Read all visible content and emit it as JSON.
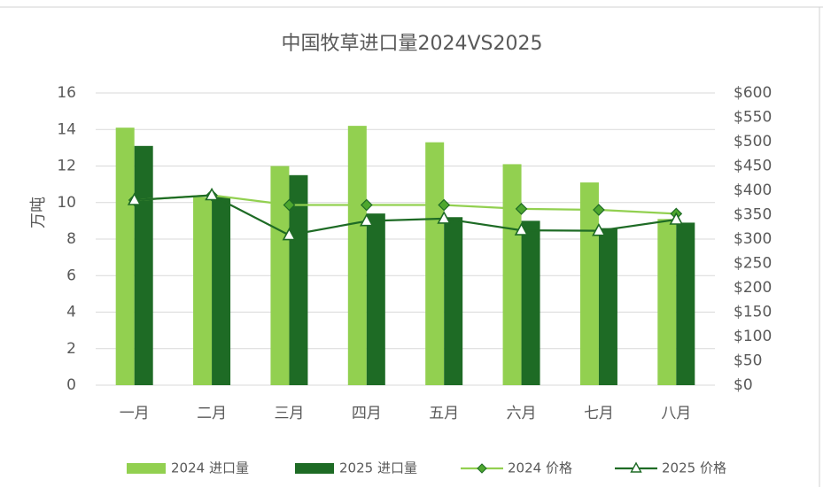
{
  "chart_data": {
    "type": "combo",
    "title": "中国牧草进口量2024VS2025",
    "y_label": "万吨",
    "categories": [
      "一月",
      "二月",
      "三月",
      "四月",
      "五月",
      "六月",
      "七月",
      "八月"
    ],
    "series": [
      {
        "name": "2024 进口量",
        "type": "bar",
        "color": "#92d050",
        "values": [
          14.1,
          10.3,
          12.0,
          14.2,
          13.3,
          12.1,
          11.1,
          9.1
        ]
      },
      {
        "name": "2025 进口量",
        "type": "bar",
        "color": "#1e6b25",
        "values": [
          13.1,
          10.3,
          11.5,
          9.4,
          9.2,
          9.0,
          8.6,
          8.9
        ]
      },
      {
        "name": "2024 价格",
        "type": "line",
        "marker": "diamond",
        "color": "#92d050",
        "axis": "y2",
        "values": [
          380,
          390,
          370,
          370,
          370,
          362,
          360,
          352
        ]
      },
      {
        "name": "2025 价格",
        "type": "line",
        "marker": "triangle",
        "color": "#1e6b25",
        "axis": "y2",
        "values": [
          380,
          390,
          308,
          337,
          342,
          318,
          317,
          340
        ]
      }
    ],
    "ylim": [
      0,
      16
    ],
    "yticks": [
      0,
      2,
      4,
      6,
      8,
      10,
      12,
      14,
      16
    ],
    "y2lim": [
      0,
      600
    ],
    "y2ticks": [
      {
        "value": 0,
        "label": "$0"
      },
      {
        "value": 50,
        "label": "$50"
      },
      {
        "value": 100,
        "label": "$100"
      },
      {
        "value": 150,
        "label": "$150"
      },
      {
        "value": 200,
        "label": "$200"
      },
      {
        "value": 250,
        "label": "$250"
      },
      {
        "value": 300,
        "label": "$300"
      },
      {
        "value": 350,
        "label": "$350"
      },
      {
        "value": 400,
        "label": "$400"
      },
      {
        "value": 450,
        "label": "$450"
      },
      {
        "value": 500,
        "label": "$500"
      },
      {
        "value": 550,
        "label": "$550"
      },
      {
        "value": 600,
        "label": "$600"
      }
    ],
    "grid": true,
    "legend": "bottom"
  }
}
